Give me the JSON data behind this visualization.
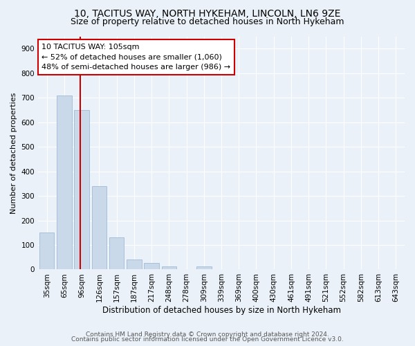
{
  "title1": "10, TACITUS WAY, NORTH HYKEHAM, LINCOLN, LN6 9ZE",
  "title2": "Size of property relative to detached houses in North Hykeham",
  "xlabel": "Distribution of detached houses by size in North Hykeham",
  "ylabel": "Number of detached properties",
  "categories": [
    "35sqm",
    "65sqm",
    "96sqm",
    "126sqm",
    "157sqm",
    "187sqm",
    "217sqm",
    "248sqm",
    "278sqm",
    "309sqm",
    "339sqm",
    "369sqm",
    "400sqm",
    "430sqm",
    "461sqm",
    "491sqm",
    "521sqm",
    "552sqm",
    "582sqm",
    "613sqm",
    "643sqm"
  ],
  "values": [
    150,
    710,
    650,
    340,
    130,
    40,
    28,
    12,
    0,
    12,
    0,
    0,
    0,
    0,
    0,
    0,
    0,
    0,
    0,
    0,
    0
  ],
  "bar_color": "#c9d9ea",
  "bar_edge_color": "#a8c0d8",
  "vline_color": "#cc0000",
  "annotation_text": "10 TACITUS WAY: 105sqm\n← 52% of detached houses are smaller (1,060)\n48% of semi-detached houses are larger (986) →",
  "annotation_box_facecolor": "#ffffff",
  "annotation_box_edge_color": "#cc0000",
  "ylim": [
    0,
    950
  ],
  "yticks": [
    0,
    100,
    200,
    300,
    400,
    500,
    600,
    700,
    800,
    900
  ],
  "footer1": "Contains HM Land Registry data © Crown copyright and database right 2024.",
  "footer2": "Contains public sector information licensed under the Open Government Licence v3.0.",
  "bg_color": "#eaf1f8",
  "plot_bg_color": "#eaf1f8",
  "grid_color": "#ffffff",
  "title1_fontsize": 10,
  "title2_fontsize": 9,
  "xlabel_fontsize": 8.5,
  "ylabel_fontsize": 8,
  "tick_fontsize": 7.5,
  "footer_fontsize": 6.5,
  "annotation_fontsize": 8
}
